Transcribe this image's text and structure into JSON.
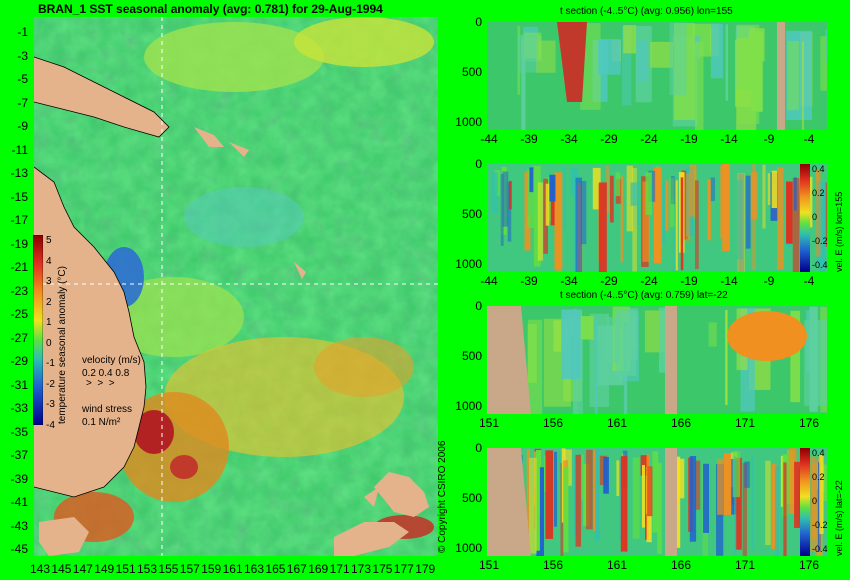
{
  "main_map": {
    "title": "BRAN_1 SST seasonal anomaly (avg: 0.781) for 29-Aug-1994",
    "lat_ticks": [
      "-1",
      "-3",
      "-5",
      "-7",
      "-9",
      "-11",
      "-13",
      "-15",
      "-17",
      "-19",
      "-21",
      "-23",
      "-25",
      "-27",
      "-29",
      "-31",
      "-33",
      "-35",
      "-37",
      "-39",
      "-41",
      "-43",
      "-45"
    ],
    "lon_ticks": [
      "143",
      "145",
      "147",
      "149",
      "151",
      "153",
      "155",
      "157",
      "159",
      "161",
      "163",
      "165",
      "167",
      "169",
      "171",
      "173",
      "175",
      "177",
      "179"
    ],
    "colorbar_label": "temperature seasonal anomaly (°C)",
    "colorbar_ticks": [
      "5",
      "4",
      "3",
      "2",
      "1",
      "0",
      "-1",
      "-2",
      "-3",
      "-4"
    ],
    "velocity_label": "velocity (m/s)",
    "velocity_values": "0.2 0.4 0.8",
    "wind_label": "wind stress",
    "wind_value": "0.1 N/m²",
    "copyright": "© Copyright CSIRO 2006"
  },
  "panels": [
    {
      "title": "t section (-4..5°C) (avg: 0.956) lon=155",
      "x_ticks": [
        "-44",
        "-39",
        "-34",
        "-29",
        "-24",
        "-19",
        "-14",
        "-9",
        "-4"
      ],
      "y_ticks": [
        "0",
        "500",
        "1000"
      ]
    },
    {
      "title": "",
      "x_ticks": [
        "-44",
        "-39",
        "-34",
        "-29",
        "-24",
        "-19",
        "-14",
        "-9",
        "-4"
      ],
      "y_ticks": [
        "0",
        "500",
        "1000"
      ],
      "cbar_label": "vel. E (m/s) lon=155",
      "cbar_ticks": [
        "0.4",
        "0.2",
        "0",
        "-0.2",
        "-0.4"
      ]
    },
    {
      "title": "t section (-4..5°C) (avg: 0.759) lat=-22",
      "x_ticks": [
        "151",
        "156",
        "161",
        "166",
        "171",
        "176"
      ],
      "y_ticks": [
        "0",
        "500",
        "1000"
      ]
    },
    {
      "title": "",
      "x_ticks": [
        "151",
        "156",
        "161",
        "166",
        "171",
        "176"
      ],
      "y_ticks": [
        "0",
        "500",
        "1000"
      ],
      "cbar_label": "vel. E (m/s) lat=-22",
      "cbar_ticks": [
        "0.4",
        "0.2",
        "0",
        "-0.2",
        "-0.4"
      ]
    }
  ],
  "chart_data": [
    {
      "type": "heatmap",
      "title": "BRAN_1 SST seasonal anomaly (avg: 0.781) for 29-Aug-1994",
      "x_range": [
        143,
        180
      ],
      "y_range": [
        -45,
        0
      ],
      "colorbar_range": [
        -4,
        5
      ],
      "crosshair": {
        "lon": 155,
        "lat": -22
      }
    },
    {
      "type": "heatmap",
      "title": "t section (-4..5°C) (avg: 0.956) lon=155",
      "x_range": [
        -45,
        0
      ],
      "y_range": [
        0,
        1050
      ],
      "y_reversed": true
    },
    {
      "type": "heatmap",
      "title": "",
      "x_range": [
        -45,
        0
      ],
      "y_range": [
        0,
        1050
      ],
      "y_reversed": true,
      "colorbar_range": [
        -0.4,
        0.4
      ]
    },
    {
      "type": "heatmap",
      "title": "t section (-4..5°C) (avg: 0.759) lat=-22",
      "x_range": [
        149,
        180
      ],
      "y_range": [
        0,
        1050
      ],
      "y_reversed": true
    },
    {
      "type": "heatmap",
      "title": "",
      "x_range": [
        149,
        180
      ],
      "y_range": [
        0,
        1050
      ],
      "y_reversed": true,
      "colorbar_range": [
        -0.4,
        0.4
      ]
    }
  ],
  "colors": {
    "background": "#00FF00",
    "land": "#E5B38B",
    "ocean_base": "#3CC86A"
  }
}
